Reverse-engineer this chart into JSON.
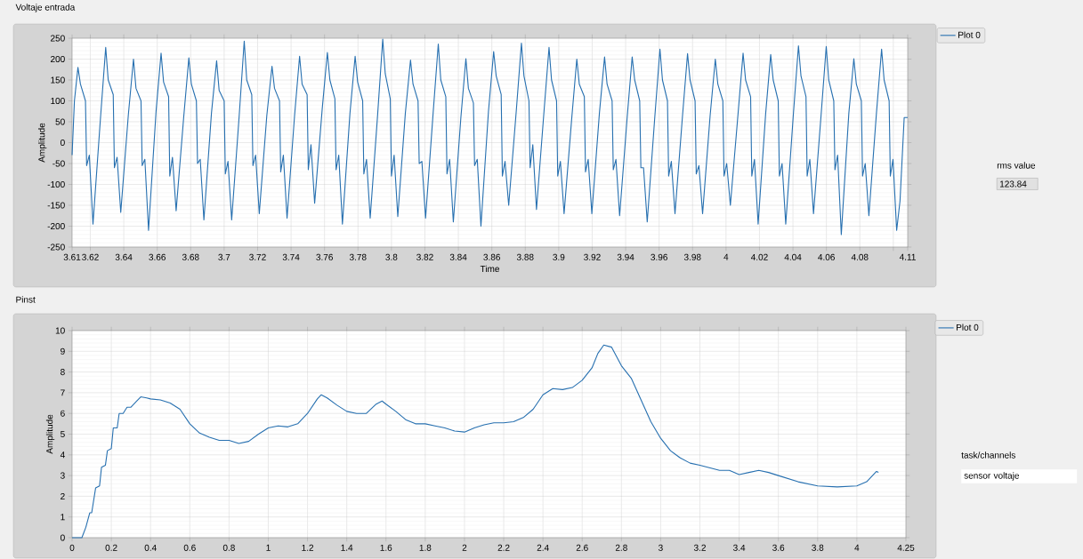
{
  "chart_data": [
    {
      "type": "line",
      "title": "Voltaje entrada",
      "xlabel": "Time",
      "ylabel": "Amplitude",
      "grid": true,
      "legend": "top right",
      "xlim": [
        3.6091,
        4.1086
      ],
      "ylim": [
        -250,
        250
      ],
      "xticks": [
        {
          "value": 3.6091,
          "label": "3.61"
        },
        3.62,
        3.64,
        3.66,
        3.68,
        3.7,
        3.72,
        3.74,
        3.76,
        3.78,
        3.8,
        3.82,
        3.84,
        3.86,
        3.88,
        3.9,
        3.92,
        3.94,
        3.96,
        3.98,
        4,
        4.02,
        4.04,
        4.06,
        4.08,
        {
          "value": 4.1,
          "label": null
        },
        {
          "value": 4.1086,
          "label": "4.11"
        }
      ],
      "yticks": [
        -250,
        -200,
        -150,
        -100,
        -50,
        0,
        50,
        100,
        150,
        200,
        250
      ],
      "annotations": [
        "rms value",
        "123.84"
      ],
      "x": [
        3.6091,
        3.6105,
        3.6126,
        3.6141,
        3.6171,
        3.6178,
        3.6194,
        3.6216,
        3.6261,
        3.6292,
        3.6307,
        3.6337,
        3.6344,
        3.636,
        3.6382,
        3.6427,
        3.6458,
        3.6473,
        3.6503,
        3.651,
        3.6526,
        3.6548,
        3.6593,
        3.6623,
        3.6638,
        3.6668,
        3.6675,
        3.6691,
        3.6713,
        3.6758,
        3.6789,
        3.6804,
        3.6834,
        3.6841,
        3.6857,
        3.6879,
        3.6924,
        3.6955,
        3.697,
        3.7,
        3.7007,
        3.7023,
        3.7045,
        3.709,
        3.712,
        3.7135,
        3.7165,
        3.7172,
        3.7188,
        3.721,
        3.7255,
        3.7286,
        3.7301,
        3.7331,
        3.7338,
        3.7354,
        3.7376,
        3.7421,
        3.7451,
        3.7466,
        3.7496,
        3.7503,
        3.7519,
        3.7541,
        3.7586,
        3.7617,
        3.7632,
        3.7662,
        3.7669,
        3.7685,
        3.7707,
        3.7752,
        3.7783,
        3.7798,
        3.7828,
        3.7835,
        3.7851,
        3.7873,
        3.7918,
        3.7948,
        3.7963,
        3.7993,
        3.8,
        3.8016,
        3.8038,
        3.8083,
        3.8114,
        3.8129,
        3.8159,
        3.8166,
        3.8182,
        3.8204,
        3.8249,
        3.828,
        3.8295,
        3.8325,
        3.8332,
        3.8348,
        3.837,
        3.8415,
        3.8445,
        3.846,
        3.849,
        3.8497,
        3.8513,
        3.8535,
        3.858,
        3.8611,
        3.8626,
        3.8656,
        3.8663,
        3.8679,
        3.8701,
        3.8746,
        3.8777,
        3.8792,
        3.8822,
        3.8829,
        3.8845,
        3.8867,
        3.8912,
        3.8942,
        3.8957,
        3.8987,
        3.8994,
        3.901,
        3.9032,
        3.9077,
        3.9108,
        3.9123,
        3.9153,
        3.916,
        3.9176,
        3.9198,
        3.9243,
        3.9274,
        3.9289,
        3.9319,
        3.9326,
        3.9342,
        3.9364,
        3.9409,
        3.9439,
        3.9454,
        3.9484,
        3.9491,
        3.9507,
        3.9529,
        3.9574,
        3.9605,
        3.962,
        3.965,
        3.9657,
        3.9673,
        3.9695,
        3.974,
        3.977,
        3.9785,
        3.9815,
        3.9822,
        3.9838,
        3.986,
        3.9905,
        3.9936,
        3.9951,
        3.9981,
        3.9988,
        4.0004,
        4.0026,
        4.0071,
        4.0102,
        4.0117,
        4.0147,
        4.0154,
        4.017,
        4.0192,
        4.0237,
        4.0267,
        4.0282,
        4.0312,
        4.0319,
        4.0335,
        4.0357,
        4.0402,
        4.0433,
        4.0448,
        4.0478,
        4.0485,
        4.0501,
        4.0523,
        4.0568,
        4.0599,
        4.0614,
        4.0644,
        4.0651,
        4.0667,
        4.0689,
        4.0734,
        4.0764,
        4.0779,
        4.0809,
        4.0816,
        4.0832,
        4.0854,
        4.0899,
        4.093,
        4.0945,
        4.0975,
        4.0982,
        4.0998,
        4.102,
        4.104,
        4.1065,
        4.1086
      ],
      "series": [
        {
          "name": "Plot 0",
          "color": "#2770b0",
          "values": [
            -30,
            100,
            180,
            140,
            100,
            -55,
            -30,
            -195,
            60,
            228,
            150,
            115,
            -60,
            -35,
            -167,
            65,
            200,
            130,
            100,
            -55,
            -40,
            -210,
            75,
            214,
            145,
            110,
            -80,
            -35,
            -163,
            60,
            203,
            140,
            100,
            -50,
            -40,
            -185,
            70,
            196,
            125,
            100,
            -75,
            -45,
            -185,
            65,
            243,
            150,
            115,
            -55,
            -30,
            -170,
            65,
            183,
            130,
            100,
            -70,
            -30,
            -181,
            65,
            207,
            140,
            115,
            -65,
            -5,
            -145,
            80,
            216,
            150,
            105,
            -65,
            -30,
            -195,
            70,
            207,
            145,
            100,
            -75,
            -40,
            -181,
            70,
            248,
            165,
            105,
            -80,
            -30,
            -177,
            70,
            198,
            140,
            100,
            -50,
            -45,
            -181,
            70,
            236,
            150,
            110,
            -75,
            -40,
            -190,
            60,
            201,
            130,
            95,
            -55,
            -40,
            -200,
            75,
            218,
            160,
            115,
            -80,
            -45,
            -150,
            75,
            238,
            160,
            100,
            -60,
            -5,
            -160,
            75,
            228,
            150,
            100,
            -80,
            -45,
            -170,
            55,
            200,
            140,
            110,
            -70,
            -40,
            -170,
            70,
            205,
            140,
            100,
            -65,
            -40,
            -175,
            60,
            205,
            150,
            100,
            -60,
            -60,
            -190,
            60,
            224,
            150,
            100,
            -80,
            -45,
            -170,
            65,
            213,
            150,
            100,
            -75,
            -55,
            -170,
            65,
            200,
            140,
            100,
            -80,
            -50,
            -150,
            65,
            214,
            150,
            110,
            -80,
            -40,
            -195,
            70,
            211,
            150,
            100,
            -80,
            -50,
            -195,
            65,
            232,
            160,
            110,
            -80,
            -40,
            -170,
            65,
            230,
            150,
            100,
            -65,
            -30,
            -220,
            70,
            201,
            140,
            100,
            -80,
            -50,
            -175,
            70,
            224,
            150,
            100,
            -80,
            -40,
            -210,
            -140,
            60,
            60
          ]
        }
      ]
    },
    {
      "type": "line",
      "title": "Pinst",
      "ylabel": "Amplitude",
      "grid": true,
      "legend": "top right",
      "xlim": [
        0,
        4.25
      ],
      "ylim": [
        0,
        10
      ],
      "xticks": [
        0,
        0.2,
        0.4,
        0.6,
        0.8,
        1,
        1.2,
        1.4,
        1.6,
        1.8,
        2,
        2.2,
        2.4,
        2.6,
        2.8,
        3,
        3.2,
        3.4,
        3.6,
        3.8,
        4,
        4.25
      ],
      "yticks": [
        0,
        1,
        2,
        3,
        4,
        5,
        6,
        7,
        8,
        9,
        10
      ],
      "annotations": [
        "task/channels",
        "sensor voltaje"
      ],
      "x": [
        0,
        0.05,
        0.07,
        0.09,
        0.1,
        0.12,
        0.14,
        0.15,
        0.17,
        0.18,
        0.2,
        0.21,
        0.23,
        0.24,
        0.26,
        0.28,
        0.3,
        0.33,
        0.35,
        0.38,
        0.4,
        0.45,
        0.5,
        0.55,
        0.6,
        0.65,
        0.7,
        0.75,
        0.8,
        0.85,
        0.9,
        0.95,
        1.0,
        1.05,
        1.1,
        1.15,
        1.2,
        1.25,
        1.27,
        1.3,
        1.35,
        1.4,
        1.45,
        1.5,
        1.55,
        1.58,
        1.6,
        1.65,
        1.7,
        1.75,
        1.8,
        1.85,
        1.9,
        1.95,
        2.0,
        2.05,
        2.1,
        2.15,
        2.2,
        2.25,
        2.3,
        2.35,
        2.4,
        2.45,
        2.5,
        2.55,
        2.6,
        2.65,
        2.68,
        2.71,
        2.75,
        2.8,
        2.85,
        2.9,
        2.95,
        3.0,
        3.05,
        3.1,
        3.15,
        3.2,
        3.3,
        3.35,
        3.4,
        3.45,
        3.5,
        3.55,
        3.6,
        3.7,
        3.8,
        3.9,
        4.0,
        4.05,
        4.1,
        4.11
      ],
      "series": [
        {
          "name": "Plot 0",
          "color": "#2770b0",
          "values": [
            0,
            0,
            0.5,
            1.2,
            1.2,
            2.4,
            2.5,
            3.4,
            3.5,
            4.2,
            4.3,
            5.3,
            5.3,
            6.0,
            6.0,
            6.3,
            6.3,
            6.6,
            6.8,
            6.75,
            6.7,
            6.65,
            6.5,
            6.2,
            5.5,
            5.05,
            4.85,
            4.7,
            4.7,
            4.55,
            4.65,
            5.0,
            5.3,
            5.4,
            5.35,
            5.5,
            6.0,
            6.7,
            6.9,
            6.75,
            6.4,
            6.1,
            6.0,
            6.0,
            6.45,
            6.6,
            6.45,
            6.1,
            5.7,
            5.5,
            5.5,
            5.4,
            5.3,
            5.15,
            5.1,
            5.3,
            5.45,
            5.55,
            5.55,
            5.6,
            5.8,
            6.2,
            6.9,
            7.2,
            7.15,
            7.25,
            7.6,
            8.2,
            8.9,
            9.3,
            9.2,
            8.3,
            7.7,
            6.65,
            5.6,
            4.8,
            4.2,
            3.85,
            3.6,
            3.5,
            3.25,
            3.25,
            3.05,
            3.15,
            3.25,
            3.15,
            3.0,
            2.7,
            2.5,
            2.45,
            2.5,
            2.7,
            3.2,
            3.15
          ]
        }
      ]
    }
  ]
}
